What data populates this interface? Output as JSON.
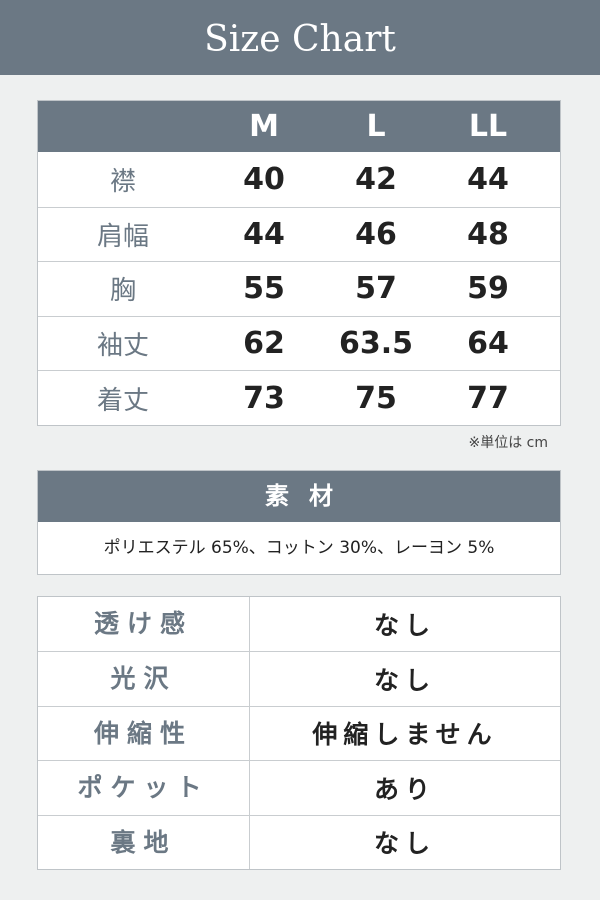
{
  "title": "Size Chart",
  "size_table": {
    "headers": [
      "",
      "M",
      "L",
      "LL"
    ],
    "rows": [
      {
        "label": "襟",
        "values": [
          "40",
          "42",
          "44"
        ]
      },
      {
        "label": "肩幅",
        "values": [
          "44",
          "46",
          "48"
        ]
      },
      {
        "label": "胸",
        "values": [
          "55",
          "57",
          "59"
        ]
      },
      {
        "label": "袖丈",
        "values": [
          "62",
          "63.5",
          "64"
        ]
      },
      {
        "label": "着丈",
        "values": [
          "73",
          "75",
          "77"
        ]
      }
    ]
  },
  "unit_note": "※単位は cm",
  "material": {
    "heading": "素材",
    "text": "ポリエステル 65%、コットン 30%、レーヨン 5%"
  },
  "properties": [
    {
      "label": "透け感",
      "value": "なし"
    },
    {
      "label": "光沢",
      "value": "なし"
    },
    {
      "label": "伸縮性",
      "value": "伸縮しません"
    },
    {
      "label": "ポケット",
      "value": "あり"
    },
    {
      "label": "裏地",
      "value": "なし"
    }
  ],
  "colors": {
    "header": "#6b7884",
    "background": "#eef0f0"
  }
}
